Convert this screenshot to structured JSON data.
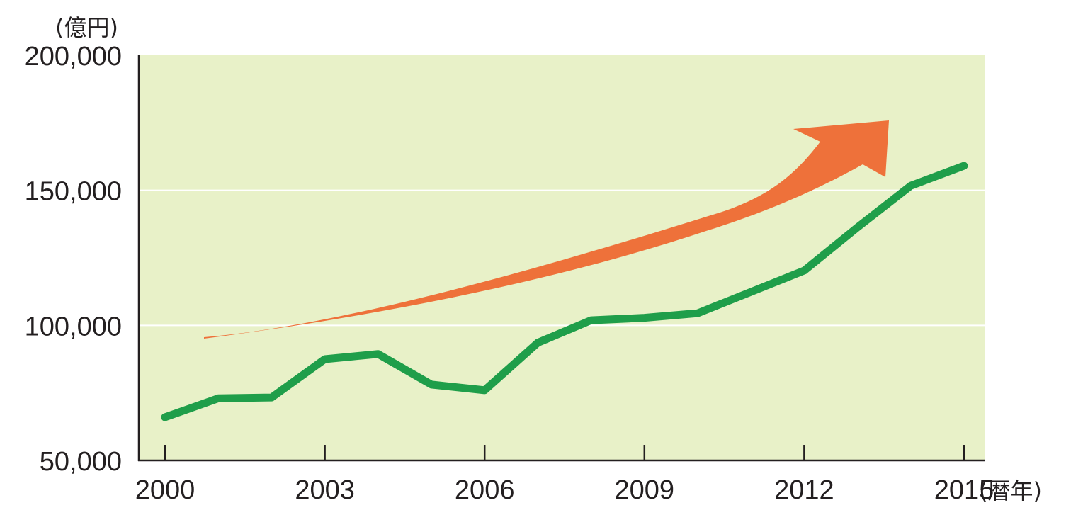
{
  "chart_data": {
    "type": "line",
    "y_unit_label": "(億円)",
    "x_unit_label": "(暦年)",
    "ylim": [
      50000,
      200000
    ],
    "xlim": [
      2000,
      2015
    ],
    "y_ticks": [
      50000,
      100000,
      150000,
      200000
    ],
    "y_tick_labels": [
      "50,000",
      "100,000",
      "150,000",
      "200,000"
    ],
    "x_ticks": [
      2000,
      2003,
      2006,
      2009,
      2012,
      2015
    ],
    "x_tick_labels": [
      "2000",
      "2003",
      "2006",
      "2009",
      "2012",
      "2015"
    ],
    "grid": "horizontal",
    "series": [
      {
        "x": [
          2000,
          2001,
          2002,
          2003,
          2004,
          2005,
          2006,
          2007,
          2008,
          2009,
          2010,
          2011,
          2012,
          2013,
          2014,
          2015
        ],
        "values": [
          66000,
          73000,
          73300,
          87500,
          89400,
          78100,
          76000,
          93600,
          101900,
          102800,
          104500,
          112400,
          120300,
          136300,
          151700,
          159100
        ],
        "color": "#1f9e4a"
      }
    ],
    "annotation": {
      "type": "trend-arrow",
      "color": "#ee713a"
    },
    "colors": {
      "plot_background": "#e8f1c8",
      "gridline": "#ffffff",
      "axis": "#231f20",
      "line": "#1f9e4a",
      "arrow": "#ee713a"
    }
  }
}
